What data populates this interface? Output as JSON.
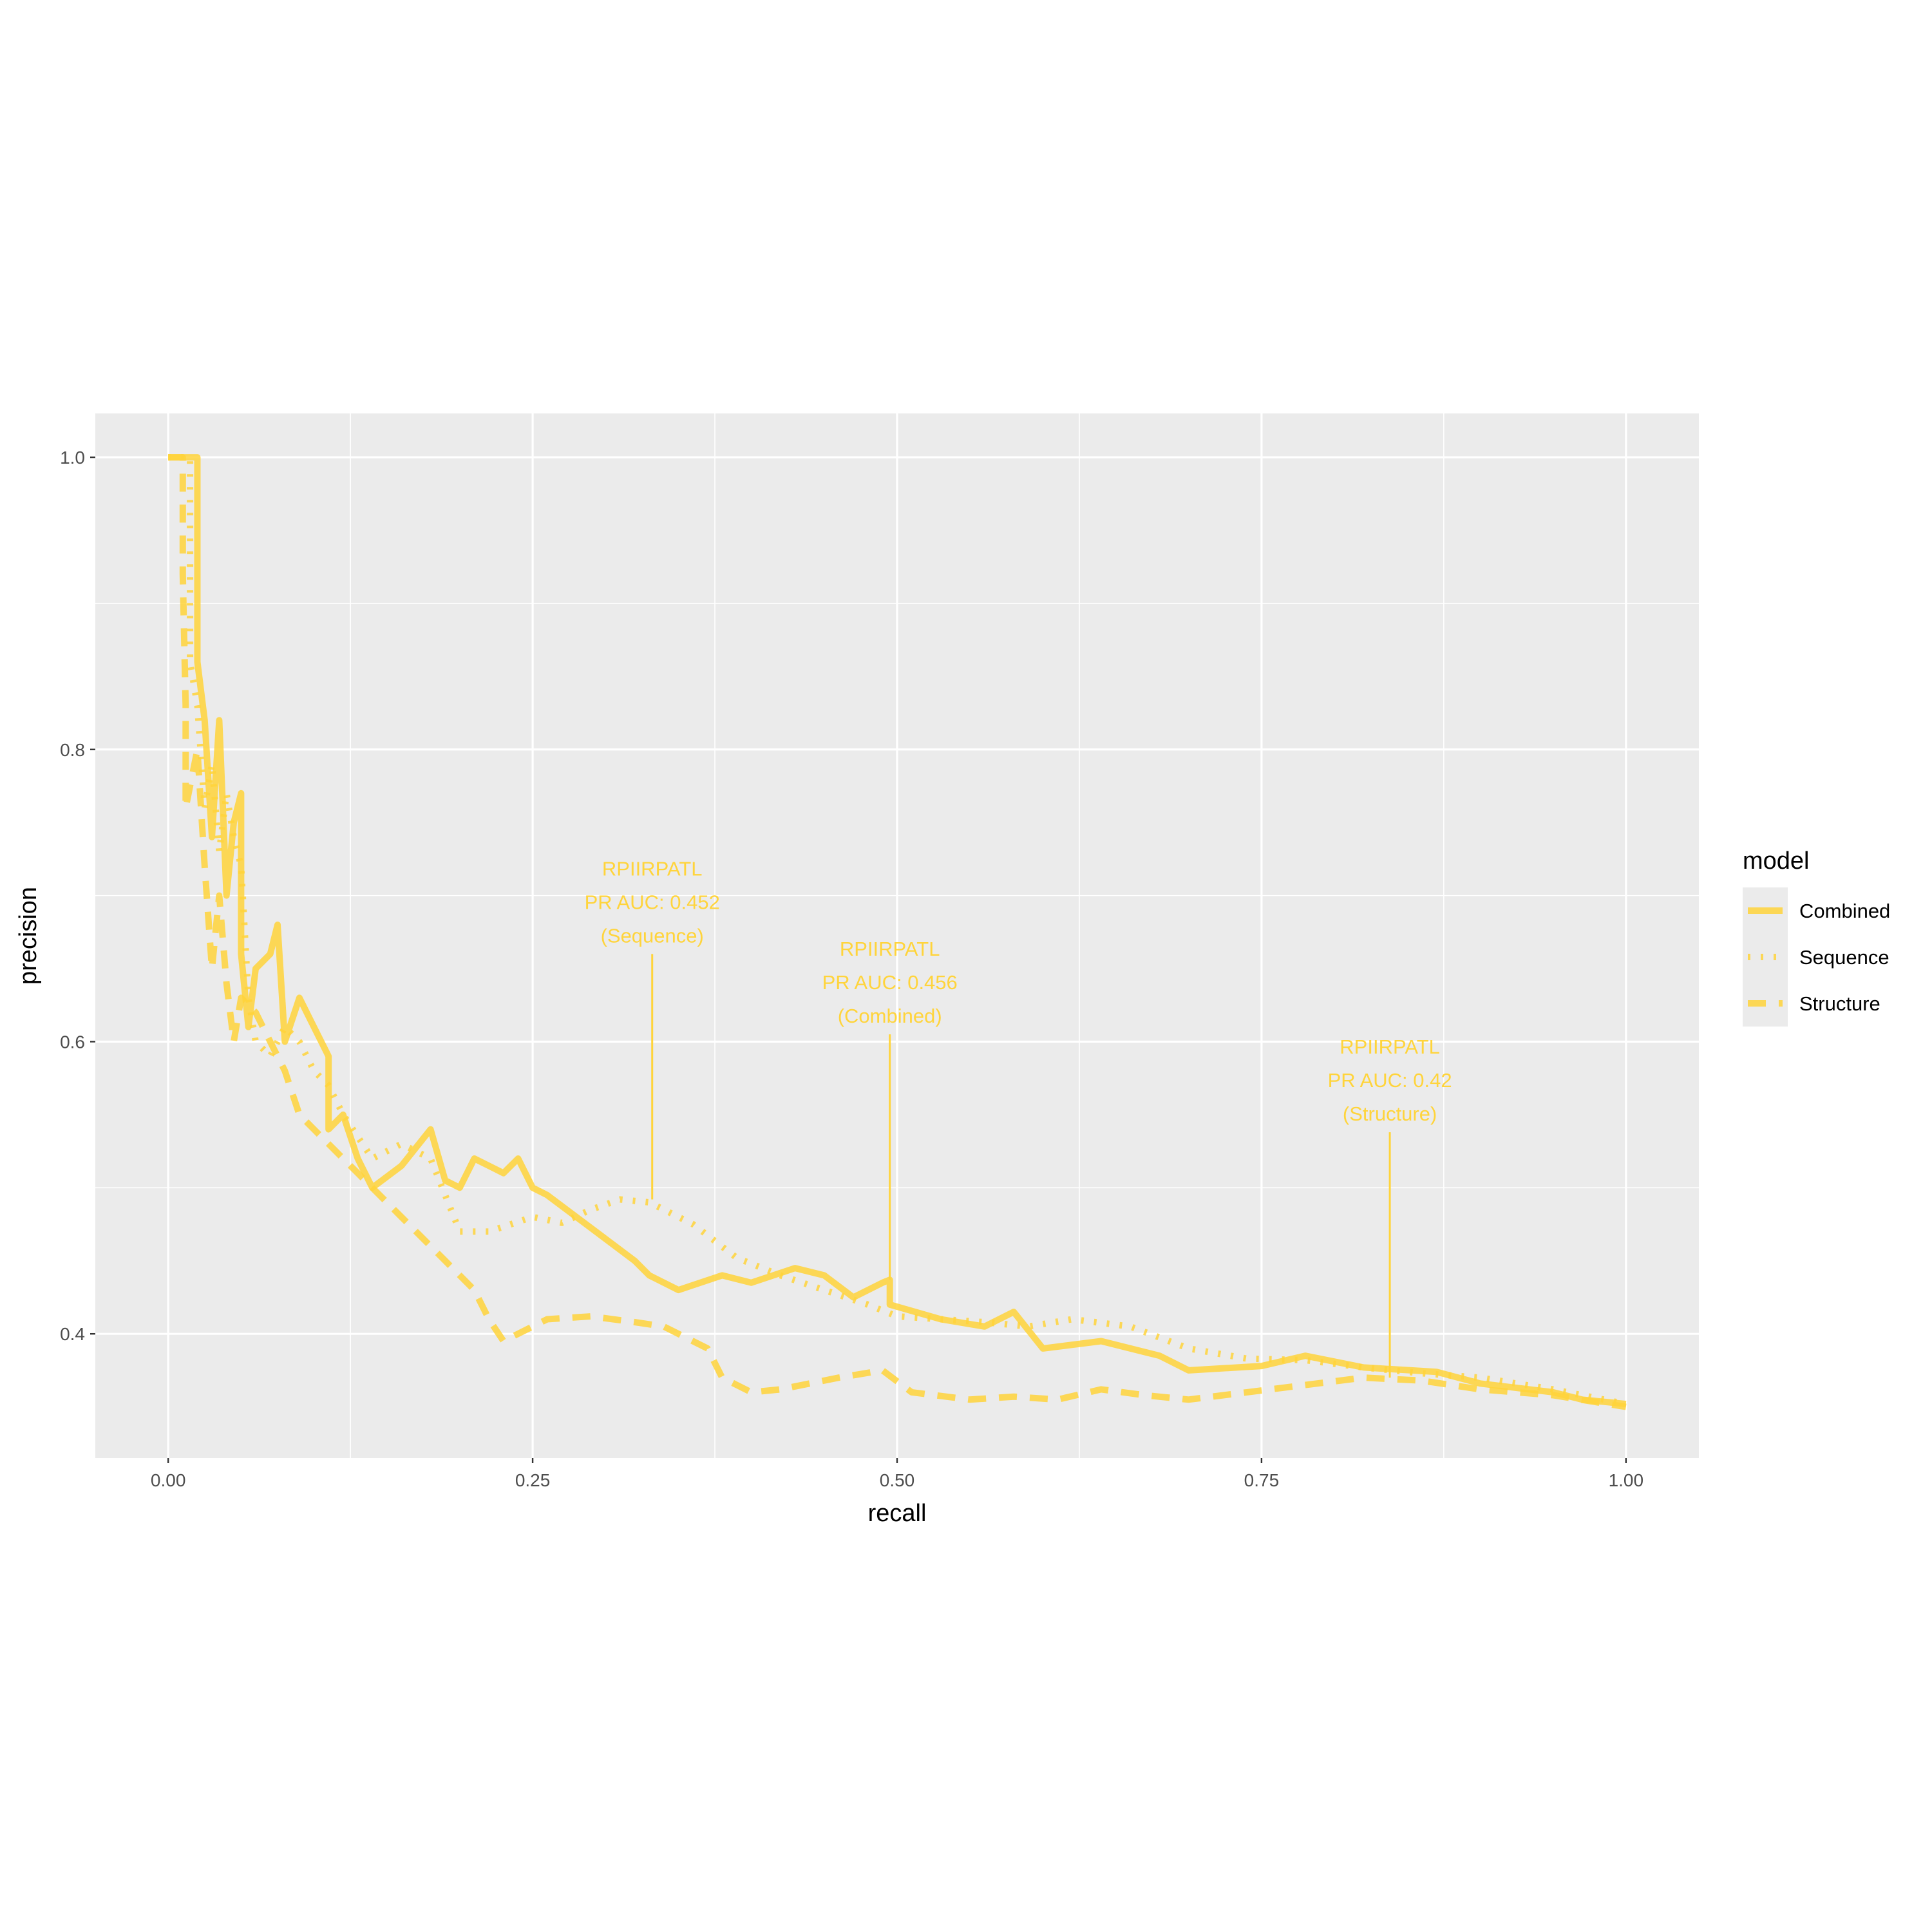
{
  "chart_data": {
    "type": "line",
    "xlabel": "recall",
    "ylabel": "precision",
    "xlim": [
      -0.05,
      1.05
    ],
    "ylim": [
      0.315,
      1.03
    ],
    "x_ticks": [
      0.0,
      0.25,
      0.5,
      0.75,
      1.0
    ],
    "x_tick_labels": [
      "0.00",
      "0.25",
      "0.50",
      "0.75",
      "1.00"
    ],
    "y_ticks": [
      0.4,
      0.6,
      0.8,
      1.0
    ],
    "y_tick_labels": [
      "0.4",
      "0.6",
      "0.8",
      "1.0"
    ],
    "grid": true,
    "line_color": "#FFD43B",
    "panel_color": "#EBEBEB",
    "legend": {
      "title": "model",
      "placement": "right",
      "entries": [
        "Combined",
        "Sequence",
        "Structure"
      ]
    },
    "series": [
      {
        "name": "Combined",
        "dash": "solid",
        "points": [
          [
            0.0,
            1.0
          ],
          [
            0.02,
            1.0
          ],
          [
            0.02,
            0.86
          ],
          [
            0.025,
            0.82
          ],
          [
            0.03,
            0.74
          ],
          [
            0.035,
            0.82
          ],
          [
            0.04,
            0.7
          ],
          [
            0.045,
            0.75
          ],
          [
            0.05,
            0.77
          ],
          [
            0.05,
            0.66
          ],
          [
            0.055,
            0.61
          ],
          [
            0.06,
            0.65
          ],
          [
            0.07,
            0.66
          ],
          [
            0.075,
            0.68
          ],
          [
            0.08,
            0.6
          ],
          [
            0.09,
            0.63
          ],
          [
            0.1,
            0.61
          ],
          [
            0.11,
            0.59
          ],
          [
            0.11,
            0.54
          ],
          [
            0.12,
            0.55
          ],
          [
            0.13,
            0.52
          ],
          [
            0.14,
            0.5
          ],
          [
            0.16,
            0.515
          ],
          [
            0.18,
            0.54
          ],
          [
            0.19,
            0.505
          ],
          [
            0.2,
            0.5
          ],
          [
            0.21,
            0.52
          ],
          [
            0.23,
            0.51
          ],
          [
            0.24,
            0.52
          ],
          [
            0.25,
            0.5
          ],
          [
            0.26,
            0.495
          ],
          [
            0.28,
            0.48
          ],
          [
            0.3,
            0.465
          ],
          [
            0.32,
            0.45
          ],
          [
            0.33,
            0.44
          ],
          [
            0.35,
            0.43
          ],
          [
            0.38,
            0.44
          ],
          [
            0.4,
            0.435
          ],
          [
            0.43,
            0.445
          ],
          [
            0.45,
            0.44
          ],
          [
            0.47,
            0.425
          ],
          [
            0.49,
            0.435
          ],
          [
            0.495,
            0.437
          ],
          [
            0.495,
            0.42
          ],
          [
            0.53,
            0.41
          ],
          [
            0.56,
            0.405
          ],
          [
            0.58,
            0.415
          ],
          [
            0.6,
            0.39
          ],
          [
            0.64,
            0.395
          ],
          [
            0.68,
            0.385
          ],
          [
            0.7,
            0.375
          ],
          [
            0.75,
            0.378
          ],
          [
            0.78,
            0.385
          ],
          [
            0.82,
            0.377
          ],
          [
            0.87,
            0.374
          ],
          [
            0.9,
            0.366
          ],
          [
            0.95,
            0.36
          ],
          [
            0.97,
            0.355
          ],
          [
            1.0,
            0.352
          ]
        ]
      },
      {
        "name": "Sequence",
        "dash": "dotted",
        "points": [
          [
            0.0,
            1.0
          ],
          [
            0.015,
            1.0
          ],
          [
            0.015,
            0.86
          ],
          [
            0.02,
            0.83
          ],
          [
            0.025,
            0.76
          ],
          [
            0.03,
            0.79
          ],
          [
            0.035,
            0.73
          ],
          [
            0.04,
            0.77
          ],
          [
            0.045,
            0.74
          ],
          [
            0.05,
            0.72
          ],
          [
            0.055,
            0.63
          ],
          [
            0.06,
            0.6
          ],
          [
            0.07,
            0.59
          ],
          [
            0.08,
            0.61
          ],
          [
            0.09,
            0.6
          ],
          [
            0.1,
            0.58
          ],
          [
            0.11,
            0.57
          ],
          [
            0.12,
            0.55
          ],
          [
            0.14,
            0.52
          ],
          [
            0.16,
            0.53
          ],
          [
            0.18,
            0.52
          ],
          [
            0.2,
            0.47
          ],
          [
            0.22,
            0.47
          ],
          [
            0.25,
            0.48
          ],
          [
            0.27,
            0.476
          ],
          [
            0.29,
            0.485
          ],
          [
            0.31,
            0.492
          ],
          [
            0.33,
            0.49
          ],
          [
            0.36,
            0.475
          ],
          [
            0.39,
            0.452
          ],
          [
            0.42,
            0.44
          ],
          [
            0.45,
            0.43
          ],
          [
            0.48,
            0.42
          ],
          [
            0.5,
            0.412
          ],
          [
            0.53,
            0.41
          ],
          [
            0.56,
            0.408
          ],
          [
            0.59,
            0.405
          ],
          [
            0.62,
            0.41
          ],
          [
            0.66,
            0.405
          ],
          [
            0.7,
            0.39
          ],
          [
            0.74,
            0.383
          ],
          [
            0.78,
            0.382
          ],
          [
            0.82,
            0.377
          ],
          [
            0.86,
            0.373
          ],
          [
            0.9,
            0.37
          ],
          [
            0.95,
            0.362
          ],
          [
            1.0,
            0.352
          ]
        ]
      },
      {
        "name": "Structure",
        "dash": "dashed",
        "points": [
          [
            0.0,
            1.0
          ],
          [
            0.01,
            1.0
          ],
          [
            0.01,
            0.92
          ],
          [
            0.012,
            0.83
          ],
          [
            0.012,
            0.76
          ],
          [
            0.02,
            0.8
          ],
          [
            0.025,
            0.72
          ],
          [
            0.03,
            0.65
          ],
          [
            0.035,
            0.7
          ],
          [
            0.04,
            0.64
          ],
          [
            0.045,
            0.6
          ],
          [
            0.05,
            0.63
          ],
          [
            0.06,
            0.62
          ],
          [
            0.07,
            0.6
          ],
          [
            0.08,
            0.58
          ],
          [
            0.09,
            0.55
          ],
          [
            0.1,
            0.54
          ],
          [
            0.11,
            0.53
          ],
          [
            0.12,
            0.52
          ],
          [
            0.13,
            0.51
          ],
          [
            0.14,
            0.5
          ],
          [
            0.15,
            0.49
          ],
          [
            0.17,
            0.47
          ],
          [
            0.19,
            0.45
          ],
          [
            0.21,
            0.43
          ],
          [
            0.22,
            0.41
          ],
          [
            0.23,
            0.395
          ],
          [
            0.26,
            0.41
          ],
          [
            0.29,
            0.412
          ],
          [
            0.32,
            0.408
          ],
          [
            0.34,
            0.405
          ],
          [
            0.37,
            0.39
          ],
          [
            0.38,
            0.37
          ],
          [
            0.4,
            0.36
          ],
          [
            0.42,
            0.362
          ],
          [
            0.46,
            0.37
          ],
          [
            0.49,
            0.375
          ],
          [
            0.51,
            0.36
          ],
          [
            0.55,
            0.355
          ],
          [
            0.58,
            0.357
          ],
          [
            0.61,
            0.355
          ],
          [
            0.64,
            0.362
          ],
          [
            0.67,
            0.358
          ],
          [
            0.7,
            0.355
          ],
          [
            0.74,
            0.36
          ],
          [
            0.78,
            0.365
          ],
          [
            0.82,
            0.37
          ],
          [
            0.86,
            0.368
          ],
          [
            0.9,
            0.362
          ],
          [
            0.95,
            0.358
          ],
          [
            1.0,
            0.35
          ]
        ]
      }
    ],
    "annotations": [
      {
        "lines": [
          "RPIIRPATL",
          "PR AUC: 0.452",
          "(Sequence)"
        ],
        "x": 0.332,
        "y_top": 0.66,
        "y_point": 0.492
      },
      {
        "lines": [
          "RPIIRPATL",
          "PR AUC: 0.456",
          "(Combined)"
        ],
        "x": 0.495,
        "y_top": 0.605,
        "y_point": 0.437
      },
      {
        "lines": [
          "RPIIRPATL",
          "PR AUC: 0.42",
          "(Structure)"
        ],
        "x": 0.838,
        "y_top": 0.538,
        "y_point": 0.37
      }
    ]
  }
}
